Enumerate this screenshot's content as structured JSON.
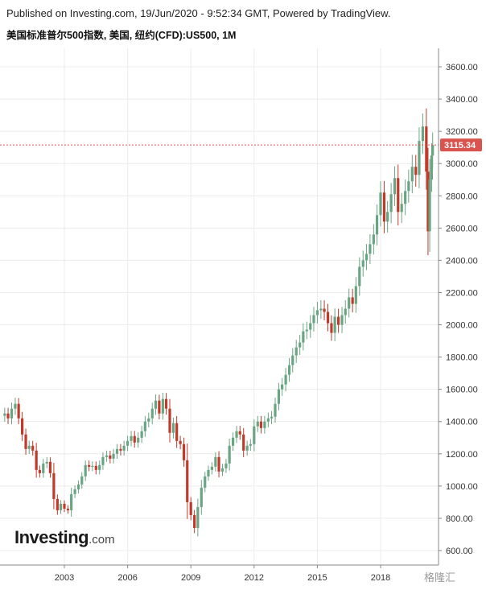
{
  "header": {
    "published": "Published on Investing.com, 19/Jun/2020 - 9:52:34 GMT, Powered by TradingView.",
    "title": "美国标准普尔500指数, 美国, 纽约(CFD):US500, 1M"
  },
  "logo": {
    "main": "Investing",
    "suffix": ".com"
  },
  "watermark": "格隆汇",
  "colors": {
    "up": "#6aa583",
    "down": "#c0392b",
    "last_price_bg": "#d9534f",
    "grid": "#ececec",
    "price_line": "#d9534f"
  },
  "chart_data": {
    "type": "candlestick",
    "interval": "1M",
    "ylim": [
      540,
      3700
    ],
    "yticks": [
      "600.00",
      "800.00",
      "1000.00",
      "1200.00",
      "1400.00",
      "1600.00",
      "1800.00",
      "2000.00",
      "2200.00",
      "2400.00",
      "2600.00",
      "2800.00",
      "3000.00",
      "3200.00",
      "3400.00",
      "3600.00"
    ],
    "xticks": [
      "2003",
      "2006",
      "2009",
      "2012",
      "2015",
      "2018"
    ],
    "last_price": "3115.34",
    "series": [
      {
        "x": 2000.17,
        "y": 1450
      },
      {
        "x": 2000.33,
        "y": 1420
      },
      {
        "x": 2000.5,
        "y": 1480
      },
      {
        "x": 2000.67,
        "y": 1510
      },
      {
        "x": 2000.83,
        "y": 1420
      },
      {
        "x": 2001.0,
        "y": 1320
      },
      {
        "x": 2001.17,
        "y": 1230
      },
      {
        "x": 2001.33,
        "y": 1250
      },
      {
        "x": 2001.5,
        "y": 1220
      },
      {
        "x": 2001.67,
        "y": 1100
      },
      {
        "x": 2001.83,
        "y": 1080
      },
      {
        "x": 2002.0,
        "y": 1140
      },
      {
        "x": 2002.17,
        "y": 1150
      },
      {
        "x": 2002.33,
        "y": 1080
      },
      {
        "x": 2002.5,
        "y": 920
      },
      {
        "x": 2002.67,
        "y": 850
      },
      {
        "x": 2002.83,
        "y": 890
      },
      {
        "x": 2003.0,
        "y": 860
      },
      {
        "x": 2003.17,
        "y": 850
      },
      {
        "x": 2003.33,
        "y": 950
      },
      {
        "x": 2003.5,
        "y": 980
      },
      {
        "x": 2003.67,
        "y": 1010
      },
      {
        "x": 2003.83,
        "y": 1060
      },
      {
        "x": 2004.0,
        "y": 1130
      },
      {
        "x": 2004.17,
        "y": 1120
      },
      {
        "x": 2004.33,
        "y": 1125
      },
      {
        "x": 2004.5,
        "y": 1100
      },
      {
        "x": 2004.67,
        "y": 1130
      },
      {
        "x": 2004.83,
        "y": 1180
      },
      {
        "x": 2005.0,
        "y": 1190
      },
      {
        "x": 2005.17,
        "y": 1170
      },
      {
        "x": 2005.33,
        "y": 1200
      },
      {
        "x": 2005.5,
        "y": 1230
      },
      {
        "x": 2005.67,
        "y": 1220
      },
      {
        "x": 2005.83,
        "y": 1250
      },
      {
        "x": 2006.0,
        "y": 1280
      },
      {
        "x": 2006.17,
        "y": 1310
      },
      {
        "x": 2006.33,
        "y": 1270
      },
      {
        "x": 2006.5,
        "y": 1300
      },
      {
        "x": 2006.67,
        "y": 1340
      },
      {
        "x": 2006.83,
        "y": 1400
      },
      {
        "x": 2007.0,
        "y": 1420
      },
      {
        "x": 2007.17,
        "y": 1480
      },
      {
        "x": 2007.33,
        "y": 1530
      },
      {
        "x": 2007.5,
        "y": 1450
      },
      {
        "x": 2007.67,
        "y": 1540
      },
      {
        "x": 2007.83,
        "y": 1480
      },
      {
        "x": 2008.0,
        "y": 1330
      },
      {
        "x": 2008.17,
        "y": 1390
      },
      {
        "x": 2008.33,
        "y": 1280
      },
      {
        "x": 2008.5,
        "y": 1260
      },
      {
        "x": 2008.67,
        "y": 1160
      },
      {
        "x": 2008.83,
        "y": 900
      },
      {
        "x": 2009.0,
        "y": 820
      },
      {
        "x": 2009.17,
        "y": 740
      },
      {
        "x": 2009.33,
        "y": 870
      },
      {
        "x": 2009.5,
        "y": 990
      },
      {
        "x": 2009.67,
        "y": 1060
      },
      {
        "x": 2009.83,
        "y": 1100
      },
      {
        "x": 2010.0,
        "y": 1120
      },
      {
        "x": 2010.17,
        "y": 1180
      },
      {
        "x": 2010.33,
        "y": 1090
      },
      {
        "x": 2010.5,
        "y": 1110
      },
      {
        "x": 2010.67,
        "y": 1140
      },
      {
        "x": 2010.83,
        "y": 1250
      },
      {
        "x": 2011.0,
        "y": 1300
      },
      {
        "x": 2011.17,
        "y": 1340
      },
      {
        "x": 2011.33,
        "y": 1320
      },
      {
        "x": 2011.5,
        "y": 1220
      },
      {
        "x": 2011.67,
        "y": 1250
      },
      {
        "x": 2011.83,
        "y": 1260
      },
      {
        "x": 2012.0,
        "y": 1370
      },
      {
        "x": 2012.17,
        "y": 1400
      },
      {
        "x": 2012.33,
        "y": 1360
      },
      {
        "x": 2012.5,
        "y": 1400
      },
      {
        "x": 2012.67,
        "y": 1420
      },
      {
        "x": 2012.83,
        "y": 1430
      },
      {
        "x": 2013.0,
        "y": 1510
      },
      {
        "x": 2013.17,
        "y": 1600
      },
      {
        "x": 2013.33,
        "y": 1630
      },
      {
        "x": 2013.5,
        "y": 1690
      },
      {
        "x": 2013.67,
        "y": 1750
      },
      {
        "x": 2013.83,
        "y": 1810
      },
      {
        "x": 2014.0,
        "y": 1860
      },
      {
        "x": 2014.17,
        "y": 1890
      },
      {
        "x": 2014.33,
        "y": 1960
      },
      {
        "x": 2014.5,
        "y": 1970
      },
      {
        "x": 2014.67,
        "y": 2010
      },
      {
        "x": 2014.83,
        "y": 2060
      },
      {
        "x": 2015.0,
        "y": 2090
      },
      {
        "x": 2015.17,
        "y": 2100
      },
      {
        "x": 2015.33,
        "y": 2080
      },
      {
        "x": 2015.5,
        "y": 2010
      },
      {
        "x": 2015.67,
        "y": 1950
      },
      {
        "x": 2015.83,
        "y": 2050
      },
      {
        "x": 2016.0,
        "y": 2000
      },
      {
        "x": 2016.17,
        "y": 2060
      },
      {
        "x": 2016.33,
        "y": 2100
      },
      {
        "x": 2016.5,
        "y": 2170
      },
      {
        "x": 2016.67,
        "y": 2130
      },
      {
        "x": 2016.83,
        "y": 2240
      },
      {
        "x": 2017.0,
        "y": 2360
      },
      {
        "x": 2017.17,
        "y": 2400
      },
      {
        "x": 2017.33,
        "y": 2440
      },
      {
        "x": 2017.5,
        "y": 2500
      },
      {
        "x": 2017.67,
        "y": 2560
      },
      {
        "x": 2017.83,
        "y": 2680
      },
      {
        "x": 2018.0,
        "y": 2820
      },
      {
        "x": 2018.17,
        "y": 2640
      },
      {
        "x": 2018.33,
        "y": 2700
      },
      {
        "x": 2018.5,
        "y": 2810
      },
      {
        "x": 2018.67,
        "y": 2910
      },
      {
        "x": 2018.83,
        "y": 2700
      },
      {
        "x": 2019.0,
        "y": 2750
      },
      {
        "x": 2019.17,
        "y": 2830
      },
      {
        "x": 2019.33,
        "y": 2890
      },
      {
        "x": 2019.5,
        "y": 2980
      },
      {
        "x": 2019.67,
        "y": 2930
      },
      {
        "x": 2019.83,
        "y": 3140
      },
      {
        "x": 2020.0,
        "y": 3230
      },
      {
        "x": 2020.17,
        "y": 2950
      },
      {
        "x": 2020.25,
        "y": 2580
      },
      {
        "x": 2020.33,
        "y": 2900
      },
      {
        "x": 2020.42,
        "y": 3050
      },
      {
        "x": 2020.47,
        "y": 3115
      }
    ]
  }
}
